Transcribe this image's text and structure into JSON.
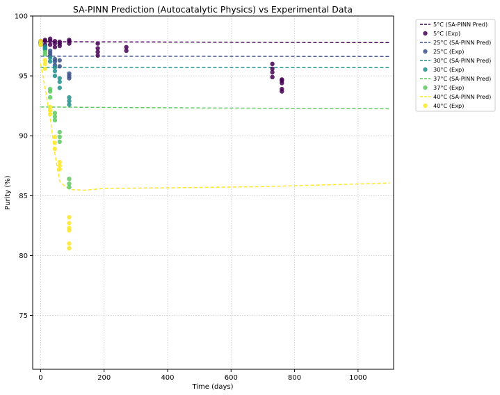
{
  "chart_data": {
    "type": "scatter",
    "title": "SA-PINN Prediction (Autocatalytic Physics) vs Experimental Data",
    "xlabel": "Time (days)",
    "ylabel": "Purity (%)",
    "xlim": [
      -25,
      1112
    ],
    "ylim": [
      70.5,
      100
    ],
    "xticks": [
      0,
      200,
      400,
      600,
      800,
      1000
    ],
    "yticks": [
      75,
      80,
      85,
      90,
      95,
      100
    ],
    "grid": true,
    "legend_position": "outside-top-right",
    "legend": [
      {
        "label": "5°C (SA-PINN Pred)",
        "kind": "line",
        "color": "#440154"
      },
      {
        "label": "5°C (Exp)",
        "kind": "marker",
        "color": "#440154"
      },
      {
        "label": "25°C (SA-PINN Pred)",
        "kind": "line",
        "color": "#3b528b"
      },
      {
        "label": "25°C (Exp)",
        "kind": "marker",
        "color": "#3b528b"
      },
      {
        "label": "30°C (SA-PINN Pred)",
        "kind": "line",
        "color": "#21918c"
      },
      {
        "label": "30°C (Exp)",
        "kind": "marker",
        "color": "#21918c"
      },
      {
        "label": "37°C (SA-PINN Pred)",
        "kind": "line",
        "color": "#5ec962"
      },
      {
        "label": "37°C (Exp)",
        "kind": "marker",
        "color": "#5ec962"
      },
      {
        "label": "40°C (SA-PINN Pred)",
        "kind": "line",
        "color": "#fde725"
      },
      {
        "label": "40°C (Exp)",
        "kind": "marker",
        "color": "#fde725"
      }
    ],
    "series": [
      {
        "name": "5°C",
        "color": "#440154",
        "prediction": [
          [
            0,
            97.85
          ],
          [
            1100,
            97.78
          ]
        ],
        "experimental": [
          [
            0,
            97.8
          ],
          [
            0,
            97.9
          ],
          [
            14,
            97.6
          ],
          [
            14,
            97.9
          ],
          [
            14,
            98.0
          ],
          [
            30,
            97.6
          ],
          [
            30,
            97.9
          ],
          [
            30,
            98.1
          ],
          [
            45,
            97.4
          ],
          [
            45,
            97.7
          ],
          [
            45,
            97.9
          ],
          [
            60,
            97.5
          ],
          [
            60,
            97.7
          ],
          [
            60,
            97.85
          ],
          [
            90,
            97.7
          ],
          [
            90,
            97.9
          ],
          [
            90,
            98.0
          ],
          [
            180,
            96.7
          ],
          [
            180,
            97.0
          ],
          [
            180,
            97.3
          ],
          [
            180,
            97.7
          ],
          [
            270,
            97.1
          ],
          [
            270,
            97.4
          ],
          [
            730,
            94.9
          ],
          [
            730,
            95.3
          ],
          [
            730,
            95.6
          ],
          [
            730,
            96.0
          ],
          [
            760,
            93.7
          ],
          [
            760,
            93.9
          ],
          [
            760,
            94.4
          ],
          [
            760,
            94.6
          ],
          [
            760,
            94.7
          ]
        ]
      },
      {
        "name": "25°C",
        "color": "#3b528b",
        "prediction": [
          [
            0,
            96.65
          ],
          [
            1100,
            96.62
          ]
        ],
        "experimental": [
          [
            0,
            97.6
          ],
          [
            0,
            97.8
          ],
          [
            14,
            97.3
          ],
          [
            14,
            97.5
          ],
          [
            30,
            96.7
          ],
          [
            30,
            96.9
          ],
          [
            30,
            97.1
          ],
          [
            45,
            95.9
          ],
          [
            45,
            96.2
          ],
          [
            45,
            96.4
          ],
          [
            60,
            95.8
          ],
          [
            60,
            96.3
          ],
          [
            90,
            94.8
          ],
          [
            90,
            95.0
          ],
          [
            90,
            95.2
          ]
        ]
      },
      {
        "name": "30°C",
        "color": "#21918c",
        "prediction": [
          [
            0,
            95.72
          ],
          [
            1100,
            95.7
          ]
        ],
        "experimental": [
          [
            0,
            97.7
          ],
          [
            14,
            97.2
          ],
          [
            14,
            97.4
          ],
          [
            30,
            96.2
          ],
          [
            30,
            96.5
          ],
          [
            45,
            95.0
          ],
          [
            45,
            95.4
          ],
          [
            45,
            95.7
          ],
          [
            60,
            94.0
          ],
          [
            60,
            94.5
          ],
          [
            60,
            94.8
          ],
          [
            90,
            92.6
          ],
          [
            90,
            92.9
          ],
          [
            90,
            93.2
          ]
        ]
      },
      {
        "name": "37°C",
        "color": "#5ec962",
        "prediction": [
          [
            0,
            92.4
          ],
          [
            300,
            92.35
          ],
          [
            700,
            92.3
          ],
          [
            1100,
            92.25
          ]
        ],
        "experimental": [
          [
            0,
            97.7
          ],
          [
            14,
            96.8
          ],
          [
            14,
            97.0
          ],
          [
            30,
            93.2
          ],
          [
            30,
            93.7
          ],
          [
            30,
            93.9
          ],
          [
            45,
            91.3
          ],
          [
            45,
            91.6
          ],
          [
            45,
            91.9
          ],
          [
            60,
            89.5
          ],
          [
            60,
            89.9
          ],
          [
            60,
            90.3
          ],
          [
            90,
            85.7
          ],
          [
            90,
            86.0
          ],
          [
            90,
            86.4
          ]
        ]
      },
      {
        "name": "40°C",
        "color": "#fde725",
        "prediction": [
          [
            0,
            96.0
          ],
          [
            14,
            94.0
          ],
          [
            30,
            91.5
          ],
          [
            45,
            88.5
          ],
          [
            60,
            86.2
          ],
          [
            80,
            85.7
          ],
          [
            100,
            85.5
          ],
          [
            140,
            85.45
          ],
          [
            200,
            85.6
          ],
          [
            400,
            85.65
          ],
          [
            700,
            85.75
          ],
          [
            1100,
            86.05
          ]
        ],
        "experimental": [
          [
            0,
            97.6
          ],
          [
            0,
            97.9
          ],
          [
            14,
            95.6
          ],
          [
            14,
            96.0
          ],
          [
            14,
            96.3
          ],
          [
            30,
            91.8
          ],
          [
            30,
            92.1
          ],
          [
            30,
            92.4
          ],
          [
            45,
            88.9
          ],
          [
            45,
            89.4
          ],
          [
            45,
            89.9
          ],
          [
            60,
            87.2
          ],
          [
            60,
            87.5
          ],
          [
            60,
            87.8
          ],
          [
            90,
            80.6
          ],
          [
            90,
            81.0
          ],
          [
            90,
            82.1
          ],
          [
            90,
            82.3
          ],
          [
            90,
            82.7
          ],
          [
            90,
            83.2
          ]
        ]
      }
    ]
  }
}
